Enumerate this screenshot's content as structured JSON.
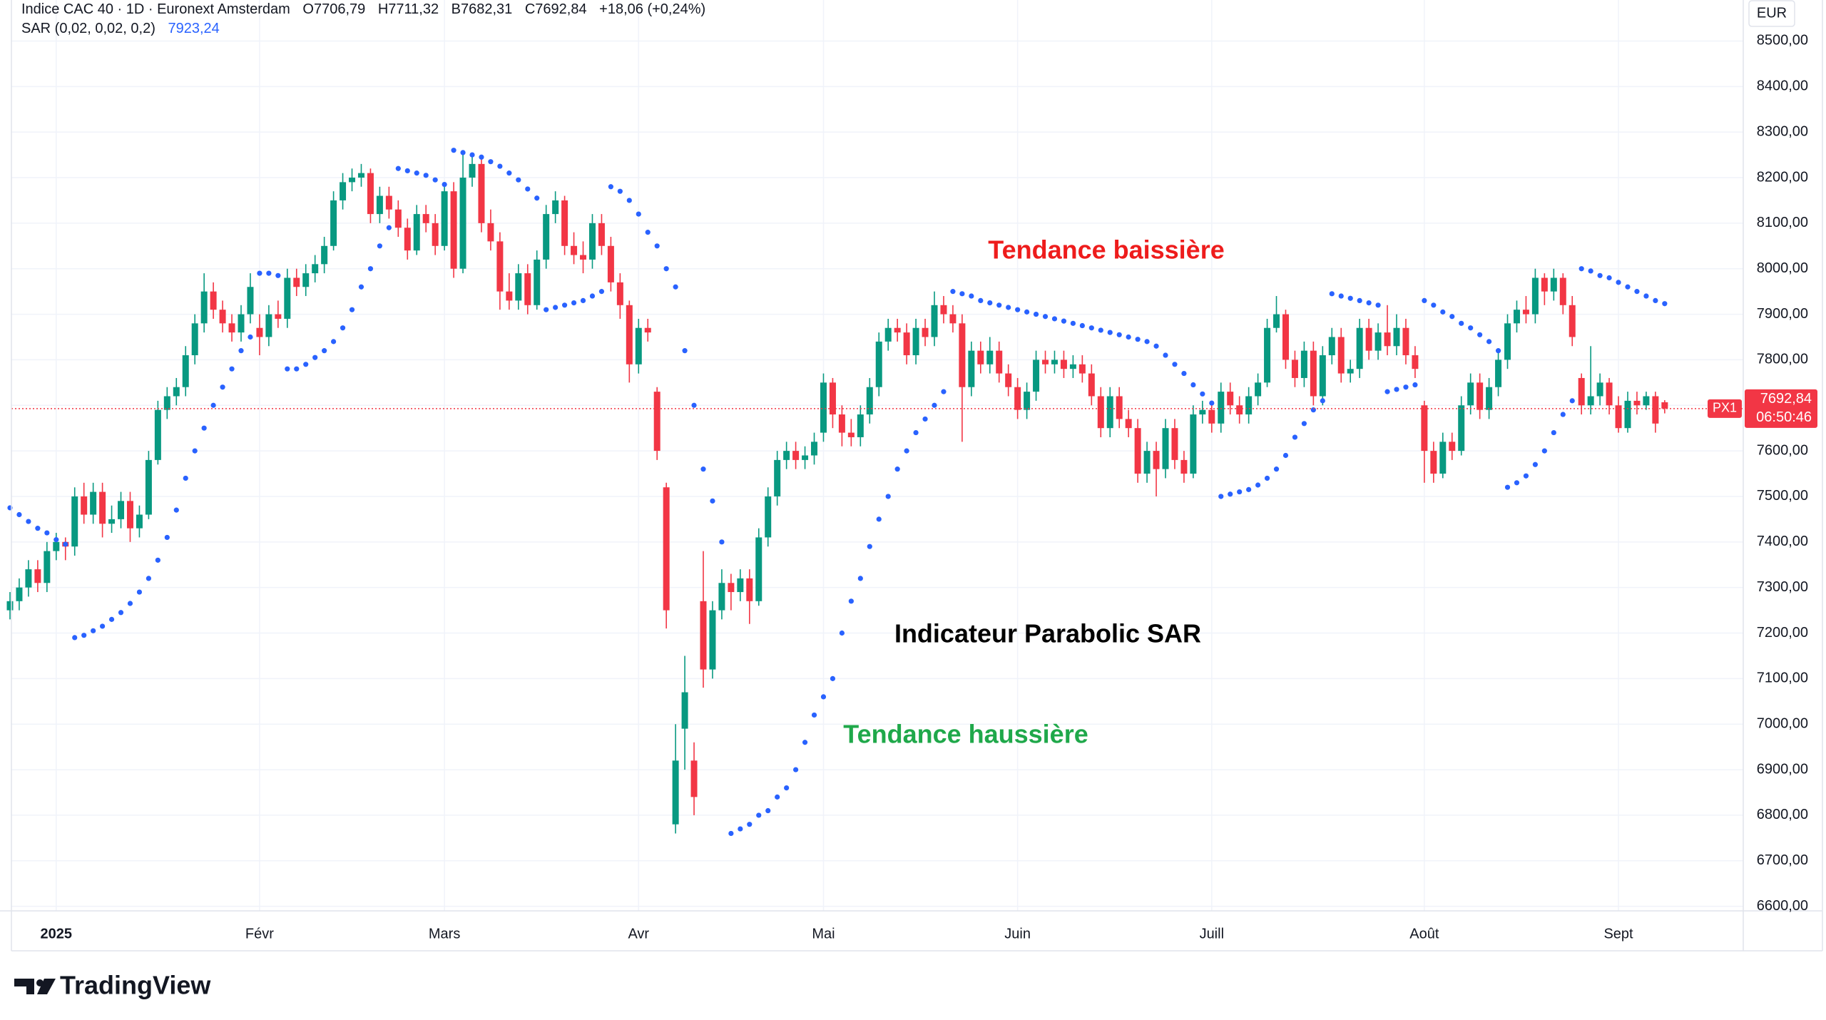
{
  "chart_data": {
    "type": "candlestick",
    "title": "Indice CAC 40 · 1D · Euronext Amsterdam",
    "ohlc_labels": [
      "O7706,79",
      "H7711,32",
      "B7682,31",
      "C7692,84"
    ],
    "change_label": "+18,06 (+0,24%)",
    "currency": "EUR",
    "symbol_tag": "PX1",
    "last_price_label": "7692,84",
    "countdown": "06:50:46",
    "logo": "TradingView",
    "up_color": "#089981",
    "down_color": "#f23645",
    "grid": true,
    "annotations": [
      {
        "text": "Tendance baissière",
        "color": "#ee1c1c"
      },
      {
        "text": "Indicateur Parabolic SAR",
        "color": "#000000"
      },
      {
        "text": "Tendance haussière",
        "color": "#1fa84a"
      }
    ],
    "ylim": [
      6590,
      8590
    ],
    "yticks": [
      {
        "value": 6600,
        "label": "6600,00"
      },
      {
        "value": 6700,
        "label": "6700,00"
      },
      {
        "value": 6800,
        "label": "6800,00"
      },
      {
        "value": 6900,
        "label": "6900,00"
      },
      {
        "value": 7000,
        "label": "7000,00"
      },
      {
        "value": 7100,
        "label": "7100,00"
      },
      {
        "value": 7200,
        "label": "7200,00"
      },
      {
        "value": 7300,
        "label": "7300,00"
      },
      {
        "value": 7400,
        "label": "7400,00"
      },
      {
        "value": 7500,
        "label": "7500,00"
      },
      {
        "value": 7600,
        "label": "7600,00"
      },
      {
        "value": 7700,
        "label": "7700,00"
      },
      {
        "value": 7800,
        "label": "7800,00"
      },
      {
        "value": 7900,
        "label": "7900,00"
      },
      {
        "value": 8000,
        "label": "8000,00"
      },
      {
        "value": 8100,
        "label": "8100,00"
      },
      {
        "value": 8200,
        "label": "8200,00"
      },
      {
        "value": 8300,
        "label": "8300,00"
      },
      {
        "value": 8400,
        "label": "8400,00"
      },
      {
        "value": 8500,
        "label": "8500,00"
      }
    ],
    "categories": [
      null,
      null,
      null,
      null,
      null,
      "2025",
      null,
      null,
      null,
      null,
      null,
      null,
      null,
      null,
      null,
      null,
      null,
      null,
      null,
      null,
      null,
      null,
      null,
      null,
      null,
      null,
      null,
      "Févr",
      null,
      null,
      null,
      null,
      null,
      null,
      null,
      null,
      null,
      null,
      null,
      null,
      null,
      null,
      null,
      null,
      null,
      null,
      null,
      "Mars",
      null,
      null,
      null,
      null,
      null,
      null,
      null,
      null,
      null,
      null,
      null,
      null,
      null,
      null,
      null,
      null,
      null,
      null,
      null,
      null,
      "Avr",
      null,
      null,
      null,
      null,
      null,
      null,
      null,
      null,
      null,
      null,
      null,
      null,
      null,
      null,
      null,
      null,
      null,
      null,
      null,
      "Mai",
      null,
      null,
      null,
      null,
      null,
      null,
      null,
      null,
      null,
      null,
      null,
      null,
      null,
      null,
      null,
      null,
      null,
      null,
      null,
      null,
      "Juin",
      null,
      null,
      null,
      null,
      null,
      null,
      null,
      null,
      null,
      null,
      null,
      null,
      null,
      null,
      null,
      null,
      null,
      null,
      null,
      null,
      "Juill",
      null,
      null,
      null,
      null,
      null,
      null,
      null,
      null,
      null,
      null,
      null,
      null,
      null,
      null,
      null,
      null,
      null,
      null,
      null,
      null,
      null,
      null,
      "Août",
      null,
      null,
      null,
      null,
      null,
      null,
      null,
      null,
      null,
      null,
      null,
      null,
      null,
      null,
      null,
      null,
      null,
      null,
      null,
      null,
      "Sept",
      null,
      null,
      null,
      null,
      null
    ],
    "candles": {
      "open": [
        7250,
        7270,
        7300,
        7340,
        7310,
        7380,
        7400,
        7390,
        7500,
        7460,
        7510,
        7440,
        7450,
        7490,
        7430,
        7460,
        7580,
        7690,
        7720,
        7740,
        7810,
        7880,
        7950,
        7910,
        7880,
        7860,
        7900,
        7870,
        7850,
        7900,
        7890,
        7980,
        7960,
        7990,
        8010,
        8050,
        8150,
        8190,
        8200,
        8210,
        8120,
        8160,
        8130,
        8090,
        8040,
        8120,
        8100,
        8050,
        8170,
        8000,
        8200,
        8230,
        8100,
        8060,
        7950,
        7930,
        7990,
        7920,
        8020,
        8120,
        8150,
        8050,
        8030,
        8020,
        8100,
        8050,
        7970,
        7920,
        7790,
        7870,
        7730,
        7520,
        6780,
        6990,
        6920,
        7270,
        7120,
        7250,
        7310,
        7290,
        7320,
        7270,
        7410,
        7500,
        7580,
        7600,
        7580,
        7590,
        7640,
        7750,
        7680,
        7640,
        7630,
        7680,
        7740,
        7840,
        7870,
        7860,
        7810,
        7870,
        7850,
        7920,
        7900,
        7880,
        7740,
        7820,
        7790,
        7820,
        7770,
        7740,
        7690,
        7730,
        7800,
        7790,
        7800,
        7780,
        7790,
        7770,
        7720,
        7650,
        7720,
        7670,
        7650,
        7550,
        7600,
        7560,
        7650,
        7580,
        7550,
        7680,
        7690,
        7660,
        7730,
        7700,
        7680,
        7720,
        7750,
        7870,
        7900,
        7800,
        7760,
        7820,
        7720,
        7810,
        7850,
        7770,
        7780,
        7870,
        7820,
        7860,
        7830,
        7870,
        7810,
        7700,
        7600,
        7550,
        7620,
        7600,
        7700,
        7750,
        7690,
        7740,
        7800,
        7880,
        7910,
        7900,
        7980,
        7950,
        7980,
        7920,
        7760,
        7700,
        7720,
        7750,
        7700,
        7650,
        7710,
        7700,
        7720,
        7706.79
      ],
      "high": [
        7290,
        7320,
        7360,
        7360,
        7400,
        7420,
        7410,
        7520,
        7530,
        7530,
        7530,
        7480,
        7510,
        7510,
        7480,
        7600,
        7710,
        7740,
        7760,
        7830,
        7900,
        7990,
        7970,
        7930,
        7900,
        7920,
        7990,
        7900,
        7920,
        7930,
        8000,
        8000,
        8010,
        8030,
        8070,
        8170,
        8210,
        8220,
        8230,
        8220,
        8180,
        8180,
        8150,
        8110,
        8140,
        8140,
        8120,
        8180,
        8190,
        8260,
        8250,
        8240,
        8130,
        8080,
        7990,
        8010,
        8010,
        8040,
        8140,
        8170,
        8160,
        8080,
        8060,
        8120,
        8120,
        8070,
        7990,
        7930,
        7890,
        7890,
        7740,
        7530,
        7000,
        7150,
        6960,
        7380,
        7270,
        7340,
        7330,
        7340,
        7340,
        7430,
        7520,
        7600,
        7620,
        7620,
        7610,
        7640,
        7770,
        7760,
        7700,
        7670,
        7700,
        7760,
        7860,
        7890,
        7890,
        7880,
        7890,
        7890,
        7950,
        7940,
        7920,
        7900,
        7840,
        7840,
        7850,
        7840,
        7790,
        7760,
        7750,
        7820,
        7820,
        7820,
        7820,
        7810,
        7810,
        7790,
        7740,
        7740,
        7740,
        7690,
        7670,
        7620,
        7620,
        7670,
        7670,
        7600,
        7700,
        7710,
        7700,
        7750,
        7750,
        7720,
        7740,
        7770,
        7890,
        7940,
        7910,
        7820,
        7840,
        7840,
        7830,
        7870,
        7870,
        7800,
        7890,
        7890,
        7880,
        7920,
        7900,
        7890,
        7830,
        7710,
        7620,
        7640,
        7640,
        7720,
        7770,
        7770,
        7760,
        7820,
        7900,
        7930,
        7940,
        8000,
        7990,
        8000,
        7990,
        7940,
        7770,
        7830,
        7770,
        7760,
        7720,
        7730,
        7730,
        7730,
        7730,
        7711.32
      ],
      "low": [
        7230,
        7250,
        7280,
        7290,
        7290,
        7360,
        7360,
        7370,
        7440,
        7440,
        7410,
        7420,
        7430,
        7400,
        7410,
        7450,
        7570,
        7670,
        7700,
        7720,
        7790,
        7860,
        7890,
        7860,
        7840,
        7840,
        7880,
        7810,
        7830,
        7870,
        7870,
        7940,
        7940,
        7970,
        7990,
        8040,
        8130,
        8170,
        8180,
        8100,
        8100,
        8110,
        8070,
        8020,
        8030,
        8080,
        8030,
        8040,
        7980,
        7990,
        8180,
        8080,
        8040,
        7910,
        7910,
        7910,
        7900,
        7910,
        8000,
        8100,
        8030,
        8010,
        7990,
        8000,
        8030,
        7950,
        7890,
        7750,
        7770,
        7840,
        7580,
        7210,
        6760,
        6900,
        6800,
        7080,
        7100,
        7230,
        7250,
        7270,
        7220,
        7260,
        7390,
        7480,
        7560,
        7560,
        7560,
        7570,
        7620,
        7650,
        7610,
        7610,
        7610,
        7660,
        7720,
        7820,
        7840,
        7790,
        7790,
        7830,
        7830,
        7880,
        7860,
        7620,
        7720,
        7770,
        7770,
        7750,
        7720,
        7670,
        7670,
        7710,
        7770,
        7770,
        7760,
        7760,
        7750,
        7700,
        7630,
        7630,
        7650,
        7630,
        7530,
        7530,
        7500,
        7540,
        7560,
        7530,
        7540,
        7660,
        7640,
        7640,
        7680,
        7660,
        7660,
        7700,
        7740,
        7860,
        7780,
        7740,
        7740,
        7700,
        7700,
        7790,
        7750,
        7750,
        7760,
        7800,
        7800,
        7810,
        7810,
        7790,
        7760,
        7530,
        7530,
        7540,
        7580,
        7590,
        7680,
        7670,
        7670,
        7720,
        7780,
        7860,
        7880,
        7880,
        7920,
        7930,
        7900,
        7830,
        7680,
        7680,
        7700,
        7680,
        7640,
        7640,
        7680,
        7690,
        7640,
        7682.31
      ],
      "close": [
        7270,
        7300,
        7340,
        7310,
        7380,
        7400,
        7390,
        7500,
        7460,
        7510,
        7440,
        7450,
        7490,
        7430,
        7460,
        7580,
        7690,
        7720,
        7740,
        7810,
        7880,
        7950,
        7910,
        7880,
        7860,
        7900,
        7960,
        7850,
        7900,
        7890,
        7980,
        7960,
        7990,
        8010,
        8050,
        8150,
        8190,
        8200,
        8210,
        8120,
        8160,
        8130,
        8090,
        8040,
        8120,
        8100,
        8050,
        8170,
        8000,
        8200,
        8230,
        8100,
        8060,
        7950,
        7930,
        7990,
        7920,
        8020,
        8120,
        8150,
        8050,
        8030,
        8020,
        8100,
        8050,
        7970,
        7920,
        7790,
        7870,
        7860,
        7600,
        7250,
        6920,
        7070,
        6840,
        7120,
        7250,
        7310,
        7290,
        7320,
        7270,
        7410,
        7500,
        7580,
        7600,
        7580,
        7590,
        7620,
        7750,
        7680,
        7640,
        7630,
        7680,
        7740,
        7840,
        7870,
        7860,
        7810,
        7870,
        7850,
        7920,
        7900,
        7880,
        7740,
        7820,
        7790,
        7820,
        7770,
        7740,
        7690,
        7730,
        7800,
        7790,
        7800,
        7780,
        7790,
        7770,
        7720,
        7650,
        7720,
        7670,
        7650,
        7550,
        7600,
        7560,
        7650,
        7580,
        7550,
        7680,
        7690,
        7660,
        7730,
        7700,
        7680,
        7720,
        7750,
        7870,
        7900,
        7800,
        7760,
        7820,
        7720,
        7810,
        7850,
        7770,
        7780,
        7870,
        7820,
        7860,
        7830,
        7870,
        7810,
        7780,
        7600,
        7550,
        7620,
        7600,
        7700,
        7750,
        7690,
        7740,
        7800,
        7880,
        7910,
        7900,
        7980,
        7950,
        7980,
        7920,
        7850,
        7700,
        7720,
        7750,
        7700,
        7650,
        7710,
        7700,
        7720,
        7660,
        7692.84
      ]
    },
    "sar": {
      "name": "SAR (0,02, 0,02, 0,2)",
      "color": "#2962ff",
      "last_label": "7923,24",
      "values": [
        7475,
        7460,
        7445,
        7430,
        7420,
        7405,
        7395,
        7190,
        7195,
        7205,
        7215,
        7230,
        7245,
        7265,
        7290,
        7320,
        7360,
        7410,
        7470,
        7540,
        7600,
        7650,
        7700,
        7740,
        7780,
        7820,
        7850,
        7990,
        7990,
        7985,
        7780,
        7780,
        7790,
        7805,
        7820,
        7840,
        7870,
        7910,
        7960,
        8000,
        8050,
        8090,
        8220,
        8215,
        8210,
        8205,
        8195,
        8185,
        8260,
        8255,
        8250,
        8245,
        8235,
        8225,
        8210,
        8195,
        8175,
        8155,
        7910,
        7915,
        7920,
        7925,
        7930,
        7940,
        7950,
        8180,
        8170,
        8150,
        8120,
        8080,
        8050,
        8000,
        7960,
        7820,
        7700,
        7560,
        7490,
        7400,
        6760,
        6770,
        6780,
        6800,
        6810,
        6840,
        6860,
        6900,
        6960,
        7020,
        7060,
        7100,
        7200,
        7270,
        7320,
        7390,
        7450,
        7500,
        7560,
        7600,
        7640,
        7670,
        7700,
        7730,
        7950,
        7945,
        7940,
        7930,
        7925,
        7920,
        7915,
        7910,
        7905,
        7900,
        7895,
        7890,
        7885,
        7880,
        7875,
        7870,
        7865,
        7860,
        7855,
        7850,
        7845,
        7840,
        7830,
        7810,
        7790,
        7770,
        7745,
        7725,
        7705,
        7500,
        7505,
        7510,
        7515,
        7525,
        7540,
        7560,
        7590,
        7630,
        7660,
        7690,
        7710,
        7945,
        7940,
        7935,
        7930,
        7925,
        7920,
        7730,
        7735,
        7740,
        7745,
        7930,
        7920,
        7905,
        7895,
        7880,
        7870,
        7855,
        7840,
        7820,
        7520,
        7530,
        7545,
        7570,
        7600,
        7640,
        7680,
        7710,
        8000,
        7995,
        7985,
        7980,
        7970,
        7960,
        7950,
        7940,
        7930,
        7923.24
      ]
    }
  }
}
